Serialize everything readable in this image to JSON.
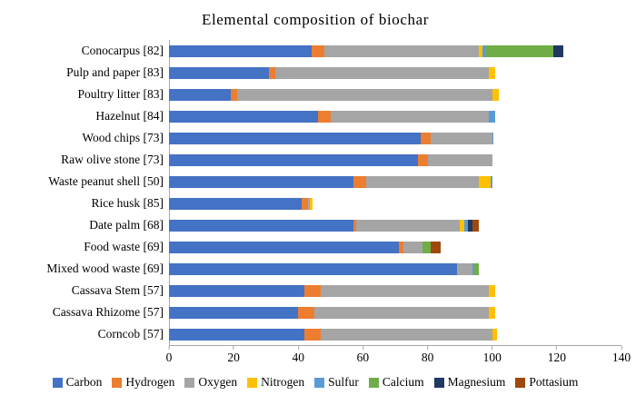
{
  "title": "Elemental composition of biochar",
  "chart_data": {
    "type": "bar",
    "orientation": "horizontal",
    "stacked": true,
    "title": "Elemental composition of biochar",
    "xlabel": "",
    "ylabel": "",
    "xlim": [
      0,
      140
    ],
    "x_ticks": [
      0,
      20,
      40,
      60,
      80,
      100,
      120,
      140
    ],
    "grid": false,
    "legend_position": "bottom",
    "categories": [
      "Conocarpus [82]",
      "Pulp and paper [83]",
      "Poultry litter [83]",
      "Hazelnut [84]",
      "Wood chips [73]",
      "Raw olive stone [73]",
      "Waste peanut shell [50]",
      "Rice husk [85]",
      "Date palm [68]",
      "Food waste [69]",
      "Mixed wood waste [69]",
      "Cassava Stem [57]",
      "Cassava Rhizome [57]",
      "Corncob [57]"
    ],
    "series": [
      {
        "name": "Carbon",
        "color": "#4472C4",
        "values": [
          44,
          31,
          19,
          46,
          78,
          77,
          57,
          41,
          57,
          71,
          89,
          42,
          40,
          42
        ]
      },
      {
        "name": "Hydrogen",
        "color": "#ED7D31",
        "values": [
          4,
          2,
          2,
          4,
          3,
          3,
          4,
          2,
          1,
          1.5,
          0,
          5,
          5,
          5
        ]
      },
      {
        "name": "Oxygen",
        "color": "#A5A5A5",
        "values": [
          48,
          66,
          79,
          49,
          19,
          20,
          35,
          0.5,
          32,
          6,
          5,
          52,
          54,
          53
        ]
      },
      {
        "name": "Nitrogen",
        "color": "#FFC000",
        "values": [
          1,
          2,
          2,
          0,
          0,
          0,
          3.5,
          1,
          1.5,
          0,
          0,
          2,
          2,
          1.5
        ]
      },
      {
        "name": "Sulfur",
        "color": "#5B9BD5",
        "values": [
          1,
          0,
          0,
          2,
          0.5,
          0,
          0.5,
          0,
          1,
          0,
          0.5,
          0,
          0,
          0
        ]
      },
      {
        "name": "Calcium",
        "color": "#70AD47",
        "values": [
          21,
          0,
          0,
          0,
          0,
          0,
          0,
          0,
          0,
          2.5,
          1.5,
          0,
          0,
          0
        ]
      },
      {
        "name": "Magnesium",
        "color": "#1F3864",
        "values": [
          3,
          0,
          0,
          0,
          0,
          0,
          0,
          0,
          1.5,
          0,
          0,
          0,
          0,
          0
        ]
      },
      {
        "name": "Pottasium",
        "color": "#9E480E",
        "values": [
          0,
          0,
          0,
          0,
          0,
          0,
          0,
          0,
          2,
          3,
          0,
          0,
          0,
          0
        ]
      }
    ]
  }
}
